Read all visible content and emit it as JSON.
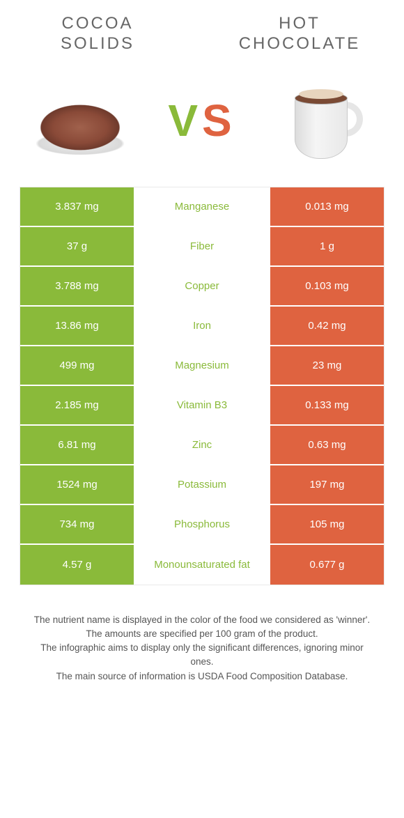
{
  "header": {
    "left_title": "COCOA SOLIDS",
    "right_title": "HOT CHOCOLATE"
  },
  "vs": {
    "v": "V",
    "s": "S"
  },
  "colors": {
    "left": "#8aba3a",
    "right": "#df6340",
    "row_border": "#ffffff",
    "text_mid_default": "#666666"
  },
  "table": {
    "rows": [
      {
        "left": "3.837 mg",
        "mid": "Manganese",
        "right": "0.013 mg",
        "winner": "left"
      },
      {
        "left": "37 g",
        "mid": "Fiber",
        "right": "1 g",
        "winner": "left"
      },
      {
        "left": "3.788 mg",
        "mid": "Copper",
        "right": "0.103 mg",
        "winner": "left"
      },
      {
        "left": "13.86 mg",
        "mid": "Iron",
        "right": "0.42 mg",
        "winner": "left"
      },
      {
        "left": "499 mg",
        "mid": "Magnesium",
        "right": "23 mg",
        "winner": "left"
      },
      {
        "left": "2.185 mg",
        "mid": "Vitamin B3",
        "right": "0.133 mg",
        "winner": "left"
      },
      {
        "left": "6.81 mg",
        "mid": "Zinc",
        "right": "0.63 mg",
        "winner": "left"
      },
      {
        "left": "1524 mg",
        "mid": "Potassium",
        "right": "197 mg",
        "winner": "left"
      },
      {
        "left": "734 mg",
        "mid": "Phosphorus",
        "right": "105 mg",
        "winner": "left"
      },
      {
        "left": "4.57 g",
        "mid": "Monounsaturated fat",
        "right": "0.677 g",
        "winner": "left"
      }
    ]
  },
  "footer": {
    "line1": "The nutrient name is displayed in the color of the food we considered as 'winner'.",
    "line2": "The amounts are specified per 100 gram of the product.",
    "line3": "The infographic aims to display only the significant differences, ignoring minor ones.",
    "line4": "The main source of information is USDA Food Composition Database."
  }
}
